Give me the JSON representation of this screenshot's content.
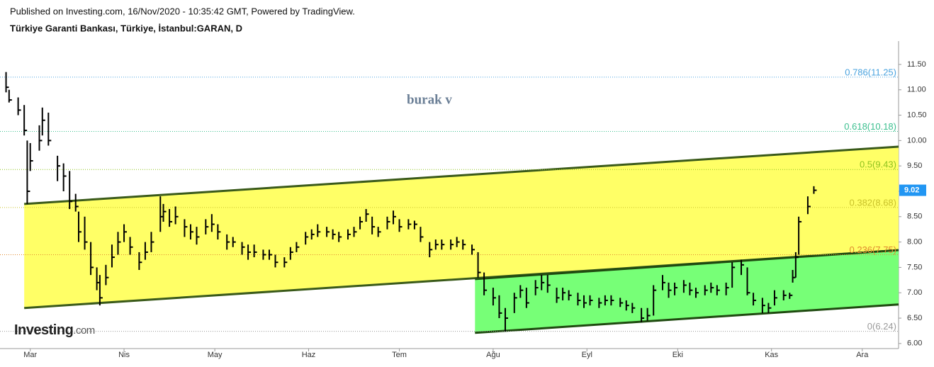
{
  "header": {
    "published": "Published on Investing.com, 16/Nov/2020 - 10:35:42 GMT, Powered by TradingView.",
    "symbol": "Türkiye Garanti Bankası, Türkiye, İstanbul:GARAN, D"
  },
  "logo": {
    "brand": "Investing",
    "suffix": ".com"
  },
  "chart_data": {
    "type": "ohlc",
    "annotation": "burak v",
    "color": "#000000",
    "xlim": [
      -10,
      287
    ],
    "xticks": [
      {
        "value": 0,
        "label": "Mar"
      },
      {
        "value": 31,
        "label": "Nis"
      },
      {
        "value": 61,
        "label": "May"
      },
      {
        "value": 92,
        "label": "Haz"
      },
      {
        "value": 122,
        "label": "Tem"
      },
      {
        "value": 153,
        "label": "Ağu"
      },
      {
        "value": 184,
        "label": "Eyl"
      },
      {
        "value": 214,
        "label": "Eki"
      },
      {
        "value": 245,
        "label": "Kas"
      },
      {
        "value": 275,
        "label": "Ara"
      }
    ],
    "ylim": [
      5.9,
      11.96
    ],
    "yticks": [
      {
        "value": 6,
        "label": "6.00"
      },
      {
        "value": 6.5,
        "label": "6.50"
      },
      {
        "value": 7,
        "label": "7.00"
      },
      {
        "value": 7.5,
        "label": "7.50"
      },
      {
        "value": 8,
        "label": "8.00"
      },
      {
        "value": 8.5,
        "label": "8.50"
      },
      {
        "value": 9,
        "label": "9.00"
      },
      {
        "value": 9.5,
        "label": "9.50"
      },
      {
        "value": 10,
        "label": "10.00"
      },
      {
        "value": 10.5,
        "label": "10.50"
      },
      {
        "value": 11,
        "label": "11.00"
      },
      {
        "value": 11.5,
        "label": "11.50"
      }
    ],
    "last_price": 9.02,
    "last_price_color": "#2196f3",
    "fib_levels": [
      {
        "label": "0.786(11.25)",
        "value": 11.25,
        "color": "#4aa3df"
      },
      {
        "label": "0.618(10.18)",
        "value": 10.18,
        "color": "#3cbf8f"
      },
      {
        "label": "0.5(9.43)",
        "value": 9.43,
        "color": "#8fc31f"
      },
      {
        "label": "0.382(8.68)",
        "value": 8.68,
        "color": "#c9c22b"
      },
      {
        "label": "0.236(7.75)",
        "value": 7.75,
        "color": "#e0892e"
      },
      {
        "label": "0(6.24)",
        "value": 6.24,
        "color": "#9a9a9a"
      }
    ],
    "channels": [
      {
        "color": "#ffff66",
        "edge": "#3a5a1a",
        "points": [
          [
            -2,
            8.75
          ],
          [
            287,
            9.88
          ],
          [
            287,
            7.84
          ],
          [
            -2,
            6.7
          ]
        ]
      },
      {
        "color": "#77ff77",
        "edge": "#1f4a10",
        "points": [
          [
            147,
            7.27
          ],
          [
            287,
            7.84
          ],
          [
            287,
            6.77
          ],
          [
            147,
            6.21
          ]
        ]
      }
    ],
    "x": [
      -8,
      -7,
      -4,
      -2,
      -1,
      0,
      3,
      4,
      6,
      9,
      11,
      13,
      15,
      16,
      18,
      20,
      22,
      23,
      25,
      27,
      29,
      31,
      33,
      36,
      38,
      40,
      43,
      44,
      46,
      48,
      51,
      53,
      55,
      58,
      60,
      62,
      65,
      67,
      70,
      72,
      74,
      77,
      79,
      81,
      84,
      86,
      88,
      91,
      93,
      95,
      98,
      100,
      102,
      105,
      107,
      109,
      111,
      113,
      115,
      118,
      120,
      122,
      125,
      127,
      129,
      132,
      134,
      136,
      139,
      141,
      143,
      146,
      148,
      150,
      153,
      155,
      157,
      160,
      162,
      164,
      167,
      169,
      171,
      174,
      176,
      178,
      181,
      183,
      185,
      188,
      190,
      192,
      195,
      197,
      199,
      202,
      204,
      206,
      209,
      211,
      213,
      216,
      218,
      220,
      223,
      225,
      227,
      230,
      232,
      235,
      237,
      239,
      242,
      244,
      246,
      249,
      251,
      252,
      253,
      254,
      257,
      259
    ],
    "high": [
      11.35,
      11.0,
      10.85,
      10.7,
      10.0,
      9.95,
      10.3,
      10.65,
      10.55,
      9.7,
      9.55,
      9.4,
      8.95,
      8.6,
      8.5,
      8.0,
      7.5,
      7.35,
      7.55,
      7.95,
      8.2,
      8.35,
      8.1,
      7.8,
      8.0,
      8.2,
      8.9,
      8.75,
      8.65,
      8.7,
      8.45,
      8.35,
      8.3,
      8.45,
      8.55,
      8.35,
      8.15,
      8.1,
      8.0,
      7.95,
      7.95,
      7.85,
      7.85,
      7.75,
      7.7,
      7.9,
      8.0,
      8.2,
      8.25,
      8.35,
      8.3,
      8.25,
      8.2,
      8.25,
      8.3,
      8.5,
      8.65,
      8.5,
      8.3,
      8.5,
      8.62,
      8.45,
      8.45,
      8.42,
      8.3,
      8.0,
      8.05,
      8.05,
      8.05,
      8.1,
      8.05,
      7.95,
      7.8,
      7.4,
      7.1,
      6.95,
      6.7,
      7.0,
      7.15,
      7.1,
      7.25,
      7.35,
      7.35,
      7.1,
      7.1,
      7.05,
      7.0,
      6.95,
      6.95,
      6.9,
      6.95,
      6.95,
      6.9,
      6.85,
      6.8,
      6.7,
      6.7,
      7.15,
      7.35,
      7.2,
      7.2,
      7.25,
      7.2,
      7.1,
      7.15,
      7.2,
      7.15,
      7.2,
      7.6,
      7.65,
      7.5,
      7.0,
      6.9,
      6.8,
      7.05,
      7.05,
      7.0,
      7.45,
      7.8,
      8.5,
      8.9,
      9.1
    ],
    "low": [
      10.95,
      10.75,
      10.5,
      10.1,
      8.75,
      9.4,
      9.8,
      10.1,
      9.9,
      9.2,
      9.0,
      8.65,
      8.6,
      8.0,
      7.85,
      7.35,
      7.05,
      6.75,
      7.15,
      7.5,
      7.75,
      8.0,
      7.75,
      7.45,
      7.65,
      7.8,
      8.2,
      8.4,
      8.3,
      8.35,
      8.1,
      8.05,
      7.95,
      8.15,
      8.2,
      8.05,
      7.85,
      7.9,
      7.75,
      7.65,
      7.7,
      7.65,
      7.65,
      7.5,
      7.5,
      7.65,
      7.8,
      7.95,
      8.05,
      8.1,
      8.1,
      8.05,
      8.0,
      8.05,
      8.1,
      8.25,
      8.4,
      8.15,
      8.1,
      8.25,
      8.35,
      8.2,
      8.25,
      8.25,
      8.0,
      7.7,
      7.85,
      7.85,
      7.85,
      7.9,
      7.85,
      7.75,
      7.3,
      6.95,
      6.75,
      6.5,
      6.24,
      6.6,
      6.9,
      6.7,
      6.95,
      7.05,
      7.0,
      6.8,
      6.85,
      6.85,
      6.75,
      6.7,
      6.75,
      6.7,
      6.75,
      6.75,
      6.72,
      6.65,
      6.6,
      6.42,
      6.45,
      6.55,
      7.05,
      6.9,
      6.95,
      7.0,
      6.95,
      6.9,
      6.95,
      7.0,
      6.95,
      6.95,
      7.1,
      7.35,
      6.95,
      6.75,
      6.6,
      6.6,
      6.75,
      6.85,
      6.88,
      7.2,
      7.3,
      7.75,
      8.55,
      8.95
    ],
    "close": [
      11.05,
      10.8,
      10.6,
      10.2,
      9.0,
      9.6,
      10.0,
      10.4,
      10.0,
      9.5,
      9.3,
      8.8,
      8.7,
      8.2,
      8.0,
      7.5,
      7.2,
      6.9,
      7.3,
      7.7,
      8.0,
      8.2,
      7.9,
      7.6,
      7.8,
      8.0,
      8.5,
      8.6,
      8.4,
      8.5,
      8.3,
      8.2,
      8.1,
      8.3,
      8.35,
      8.2,
      8.0,
      8.0,
      7.9,
      7.8,
      7.8,
      7.75,
      7.75,
      7.6,
      7.6,
      7.8,
      7.9,
      8.1,
      8.15,
      8.2,
      8.2,
      8.15,
      8.1,
      8.15,
      8.2,
      8.4,
      8.55,
      8.3,
      8.2,
      8.4,
      8.5,
      8.3,
      8.35,
      8.35,
      8.1,
      7.85,
      7.95,
      7.95,
      7.95,
      8.0,
      7.95,
      7.85,
      7.4,
      7.05,
      6.9,
      6.6,
      6.5,
      6.9,
      7.05,
      6.8,
      7.1,
      7.2,
      7.15,
      6.9,
      7.0,
      6.95,
      6.85,
      6.8,
      6.85,
      6.8,
      6.85,
      6.85,
      6.8,
      6.75,
      6.7,
      6.5,
      6.55,
      7.05,
      7.2,
      7.05,
      7.1,
      7.15,
      7.05,
      7.0,
      7.05,
      7.1,
      7.05,
      7.1,
      7.5,
      7.55,
      7.0,
      6.85,
      6.75,
      6.7,
      6.9,
      6.95,
      6.95,
      7.3,
      7.7,
      8.4,
      8.7,
      9.02
    ]
  }
}
